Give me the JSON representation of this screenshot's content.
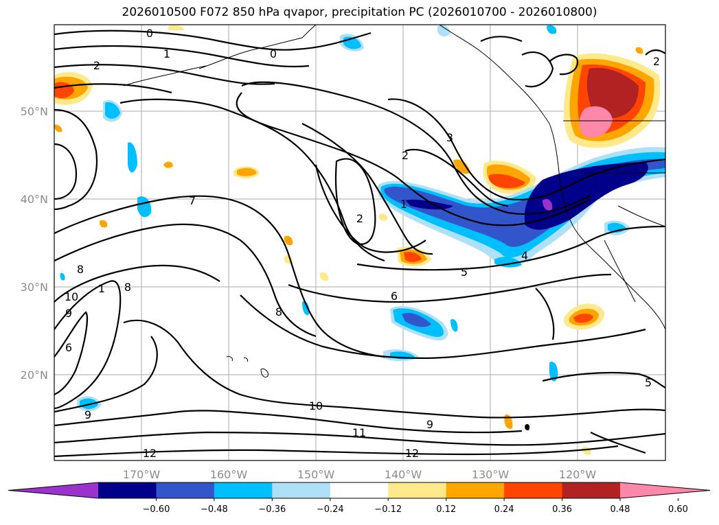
{
  "title": "2026010500 F072 850 hPa qvapor, precipitation PC (2026010700 - 2026010800)",
  "lat_labels": [
    "50°N",
    "40°N",
    "30°N",
    "20°N"
  ],
  "lon_labels": [
    "170°W",
    "160°W",
    "150°W",
    "140°W",
    "130°W",
    "120°W"
  ],
  "colorbar": {
    "colors": [
      "#9933cc",
      "#00008b",
      "#3355cc",
      "#00bfff",
      "#aee0f8",
      "#ffffff",
      "#ffe98a",
      "#ffa500",
      "#ff4500",
      "#b22222",
      "#ff88aa"
    ],
    "tick_labels": [
      "−0.60",
      "−0.48",
      "−0.36",
      "−0.24",
      "−0.12",
      "0.12",
      "0.24",
      "0.36",
      "0.48",
      "0.60"
    ]
  },
  "contour_labels": [
    "0",
    "1",
    "0",
    "2",
    "2",
    "3",
    "2",
    "1",
    "2",
    "7",
    "5",
    "4",
    "6",
    "8",
    "8",
    "8",
    "10",
    "9",
    "6",
    "1",
    "10",
    "9",
    "11",
    "12",
    "12",
    "5",
    "9"
  ]
}
